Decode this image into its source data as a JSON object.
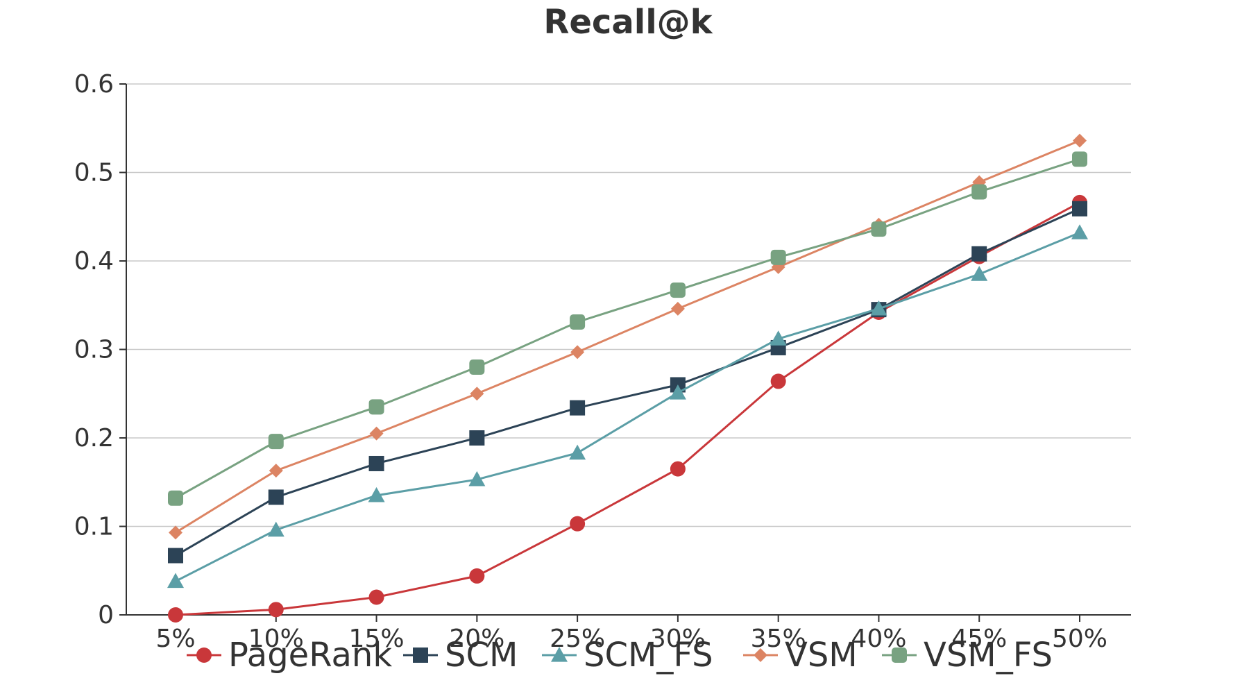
{
  "chart_data": {
    "type": "line",
    "title": "Recall@k",
    "xlabel": "",
    "ylabel": "",
    "categories": [
      "5%",
      "10%",
      "15%",
      "20%",
      "25%",
      "30%",
      "35%",
      "40%",
      "45%",
      "50%"
    ],
    "y_ticks": [
      "0",
      "0.1",
      "0.2",
      "0.3",
      "0.4",
      "0.5",
      "0.6"
    ],
    "ylim": [
      0,
      0.6
    ],
    "grid": true,
    "legend_position": "bottom",
    "series": [
      {
        "name": "PageRank",
        "color": "#c9373a",
        "marker": "circle",
        "values": [
          0.0,
          0.006,
          0.02,
          0.044,
          0.103,
          0.165,
          0.264,
          0.342,
          0.405,
          0.466
        ]
      },
      {
        "name": "SCM",
        "color": "#2c4356",
        "marker": "square",
        "values": [
          0.067,
          0.133,
          0.171,
          0.2,
          0.234,
          0.26,
          0.302,
          0.345,
          0.408,
          0.459
        ]
      },
      {
        "name": "SCM_FS",
        "color": "#5b9ea6",
        "marker": "triangle",
        "values": [
          0.038,
          0.096,
          0.135,
          0.153,
          0.183,
          0.251,
          0.312,
          0.346,
          0.385,
          0.432
        ]
      },
      {
        "name": "VSM",
        "color": "#dc8463",
        "marker": "diamond",
        "values": [
          0.093,
          0.163,
          0.205,
          0.25,
          0.297,
          0.346,
          0.393,
          0.441,
          0.489,
          0.536
        ]
      },
      {
        "name": "VSM_FS",
        "color": "#78a281",
        "marker": "rounded-square",
        "values": [
          0.132,
          0.196,
          0.235,
          0.28,
          0.331,
          0.367,
          0.404,
          0.436,
          0.478,
          0.515
        ]
      }
    ]
  }
}
